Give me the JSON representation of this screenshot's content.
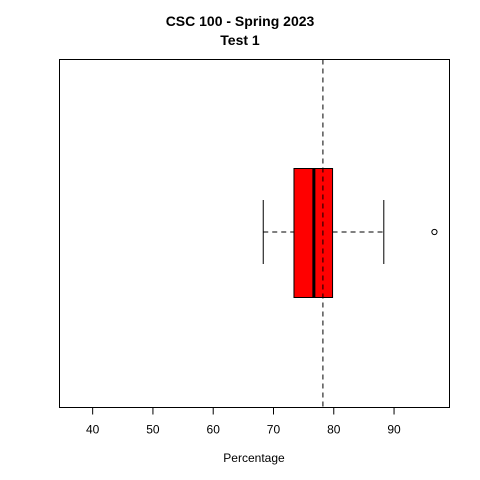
{
  "chart_data": {
    "type": "boxplot",
    "title": "CSC 100 - Spring 2023",
    "subtitle": "Test 1",
    "xlabel": "Percentage",
    "ylabel": "",
    "xlim": [
      34.5,
      99.2
    ],
    "x_ticks": [
      40,
      50,
      60,
      70,
      80,
      90
    ],
    "orientation": "horizontal",
    "box": {
      "whisker_low": 68.3,
      "q1": 73.4,
      "median": 76.7,
      "q3": 79.8,
      "whisker_high": 88.3,
      "outliers": [
        96.7
      ]
    },
    "mean_line": 78.2,
    "colors": {
      "box_fill": "#ff0000",
      "outline": "#000000"
    }
  }
}
